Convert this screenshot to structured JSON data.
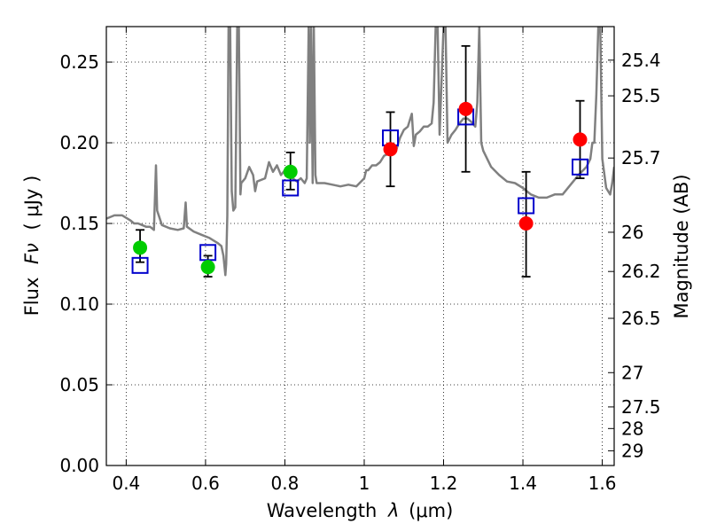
{
  "chart_data": {
    "type": "scatter",
    "xlabel_prefix": "Wavelength",
    "xlabel_symbol": "λ",
    "xlabel_unit": "(μm)",
    "ylabel_prefix": "Flux",
    "ylabel_symbol": "Fν",
    "ylabel_unit": "( μJy )",
    "y2label": "Magnitude (AB)",
    "xlim": [
      0.35,
      1.63
    ],
    "ylim": [
      0.0,
      0.272
    ],
    "grid": true,
    "x_ticks": [
      {
        "value": 0.4,
        "label": "0.4"
      },
      {
        "value": 0.6,
        "label": "0.6"
      },
      {
        "value": 0.8,
        "label": "0.8"
      },
      {
        "value": 1.0,
        "label": "1"
      },
      {
        "value": 1.2,
        "label": "1.2"
      },
      {
        "value": 1.4,
        "label": "1.4"
      },
      {
        "value": 1.6,
        "label": "1.6"
      }
    ],
    "y_ticks": [
      {
        "value": 0.0,
        "label": "0.00"
      },
      {
        "value": 0.05,
        "label": "0.05"
      },
      {
        "value": 0.1,
        "label": "0.10"
      },
      {
        "value": 0.15,
        "label": "0.15"
      },
      {
        "value": 0.2,
        "label": "0.20"
      },
      {
        "value": 0.25,
        "label": "0.25"
      }
    ],
    "mag_ticks": [
      {
        "value": 25.4,
        "label": "25.4"
      },
      {
        "value": 25.5,
        "label": "25.5"
      },
      {
        "value": 25.7,
        "label": "25.7"
      },
      {
        "value": 26,
        "label": "26"
      },
      {
        "value": 26.2,
        "label": "26.2"
      },
      {
        "value": 26.5,
        "label": "26.5"
      },
      {
        "value": 27,
        "label": "27"
      },
      {
        "value": 27.5,
        "label": "27.5"
      },
      {
        "value": 28,
        "label": "28"
      },
      {
        "value": 29,
        "label": "29"
      }
    ],
    "colors": {
      "spectrum": "#808080",
      "green": "#00cc00",
      "red": "#ff0000",
      "model": "#0000cc",
      "error": "#000000"
    },
    "observed": [
      {
        "x": 0.435,
        "y": 0.135,
        "yerr_low": 0.126,
        "yerr_high": 0.146,
        "color": "green"
      },
      {
        "x": 0.606,
        "y": 0.123,
        "yerr_low": 0.117,
        "yerr_high": 0.13,
        "color": "green"
      },
      {
        "x": 0.814,
        "y": 0.182,
        "yerr_low": 0.171,
        "yerr_high": 0.194,
        "color": "green"
      },
      {
        "x": 1.066,
        "y": 0.196,
        "yerr_low": 0.173,
        "yerr_high": 0.219,
        "color": "red"
      },
      {
        "x": 1.256,
        "y": 0.221,
        "yerr_low": 0.182,
        "yerr_high": 0.26,
        "color": "red"
      },
      {
        "x": 1.408,
        "y": 0.15,
        "yerr_low": 0.117,
        "yerr_high": 0.182,
        "color": "red"
      },
      {
        "x": 1.544,
        "y": 0.202,
        "yerr_low": 0.178,
        "yerr_high": 0.226,
        "color": "red"
      }
    ],
    "model_photometry": [
      {
        "x": 0.435,
        "y": 0.124
      },
      {
        "x": 0.606,
        "y": 0.132
      },
      {
        "x": 0.814,
        "y": 0.172
      },
      {
        "x": 1.066,
        "y": 0.203
      },
      {
        "x": 1.256,
        "y": 0.216
      },
      {
        "x": 1.408,
        "y": 0.161
      },
      {
        "x": 1.544,
        "y": 0.185
      }
    ],
    "spectrum": [
      [
        0.35,
        0.153
      ],
      [
        0.37,
        0.155
      ],
      [
        0.39,
        0.155
      ],
      [
        0.41,
        0.152
      ],
      [
        0.42,
        0.15
      ],
      [
        0.43,
        0.15
      ],
      [
        0.44,
        0.149
      ],
      [
        0.45,
        0.148
      ],
      [
        0.46,
        0.148
      ],
      [
        0.465,
        0.147
      ],
      [
        0.47,
        0.146
      ],
      [
        0.475,
        0.186
      ],
      [
        0.478,
        0.158
      ],
      [
        0.49,
        0.149
      ],
      [
        0.51,
        0.147
      ],
      [
        0.53,
        0.146
      ],
      [
        0.545,
        0.147
      ],
      [
        0.55,
        0.163
      ],
      [
        0.553,
        0.148
      ],
      [
        0.57,
        0.145
      ],
      [
        0.59,
        0.143
      ],
      [
        0.61,
        0.141
      ],
      [
        0.63,
        0.138
      ],
      [
        0.64,
        0.136
      ],
      [
        0.645,
        0.13
      ],
      [
        0.65,
        0.118
      ],
      [
        0.652,
        0.125
      ],
      [
        0.655,
        0.155
      ],
      [
        0.658,
        0.272
      ],
      [
        0.662,
        0.272
      ],
      [
        0.666,
        0.17
      ],
      [
        0.67,
        0.158
      ],
      [
        0.675,
        0.16
      ],
      [
        0.68,
        0.272
      ],
      [
        0.684,
        0.272
      ],
      [
        0.688,
        0.168
      ],
      [
        0.69,
        0.175
      ],
      [
        0.7,
        0.178
      ],
      [
        0.71,
        0.185
      ],
      [
        0.72,
        0.18
      ],
      [
        0.725,
        0.17
      ],
      [
        0.73,
        0.176
      ],
      [
        0.75,
        0.178
      ],
      [
        0.76,
        0.188
      ],
      [
        0.77,
        0.182
      ],
      [
        0.78,
        0.186
      ],
      [
        0.79,
        0.18
      ],
      [
        0.8,
        0.183
      ],
      [
        0.81,
        0.183
      ],
      [
        0.82,
        0.178
      ],
      [
        0.83,
        0.176
      ],
      [
        0.84,
        0.178
      ],
      [
        0.85,
        0.175
      ],
      [
        0.855,
        0.178
      ],
      [
        0.86,
        0.272
      ],
      [
        0.863,
        0.2
      ],
      [
        0.866,
        0.272
      ],
      [
        0.87,
        0.175
      ],
      [
        0.873,
        0.272
      ],
      [
        0.877,
        0.18
      ],
      [
        0.88,
        0.175
      ],
      [
        0.9,
        0.175
      ],
      [
        0.92,
        0.174
      ],
      [
        0.94,
        0.173
      ],
      [
        0.96,
        0.174
      ],
      [
        0.98,
        0.173
      ],
      [
        1.0,
        0.178
      ],
      [
        1.005,
        0.183
      ],
      [
        1.01,
        0.183
      ],
      [
        1.02,
        0.186
      ],
      [
        1.03,
        0.186
      ],
      [
        1.04,
        0.188
      ],
      [
        1.05,
        0.192
      ],
      [
        1.06,
        0.193
      ],
      [
        1.07,
        0.193
      ],
      [
        1.08,
        0.195
      ],
      [
        1.09,
        0.203
      ],
      [
        1.1,
        0.208
      ],
      [
        1.11,
        0.21
      ],
      [
        1.12,
        0.218
      ],
      [
        1.125,
        0.198
      ],
      [
        1.13,
        0.205
      ],
      [
        1.14,
        0.207
      ],
      [
        1.15,
        0.21
      ],
      [
        1.16,
        0.21
      ],
      [
        1.17,
        0.212
      ],
      [
        1.175,
        0.225
      ],
      [
        1.18,
        0.272
      ],
      [
        1.185,
        0.272
      ],
      [
        1.19,
        0.205
      ],
      [
        1.2,
        0.272
      ],
      [
        1.205,
        0.272
      ],
      [
        1.21,
        0.2
      ],
      [
        1.22,
        0.205
      ],
      [
        1.23,
        0.208
      ],
      [
        1.24,
        0.212
      ],
      [
        1.25,
        0.215
      ],
      [
        1.26,
        0.215
      ],
      [
        1.27,
        0.213
      ],
      [
        1.28,
        0.21
      ],
      [
        1.285,
        0.225
      ],
      [
        1.29,
        0.272
      ],
      [
        1.295,
        0.2
      ],
      [
        1.3,
        0.195
      ],
      [
        1.32,
        0.185
      ],
      [
        1.34,
        0.18
      ],
      [
        1.36,
        0.176
      ],
      [
        1.38,
        0.175
      ],
      [
        1.4,
        0.172
      ],
      [
        1.42,
        0.168
      ],
      [
        1.44,
        0.166
      ],
      [
        1.46,
        0.166
      ],
      [
        1.48,
        0.168
      ],
      [
        1.5,
        0.168
      ],
      [
        1.52,
        0.174
      ],
      [
        1.54,
        0.18
      ],
      [
        1.56,
        0.185
      ],
      [
        1.57,
        0.19
      ],
      [
        1.575,
        0.2
      ],
      [
        1.58,
        0.2
      ],
      [
        1.585,
        0.23
      ],
      [
        1.59,
        0.272
      ],
      [
        1.595,
        0.272
      ],
      [
        1.6,
        0.19
      ],
      [
        1.61,
        0.172
      ],
      [
        1.62,
        0.168
      ],
      [
        1.625,
        0.175
      ],
      [
        1.63,
        0.185
      ]
    ]
  }
}
